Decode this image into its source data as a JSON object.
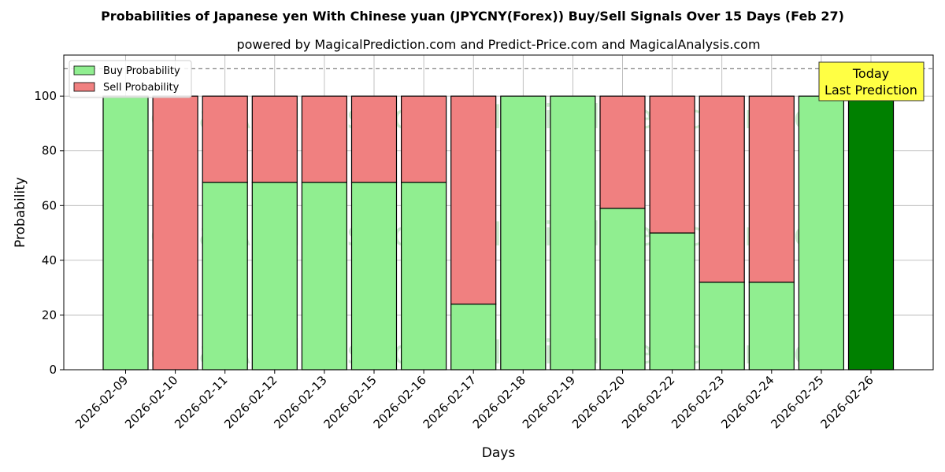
{
  "chart_data": {
    "type": "bar",
    "stacked": true,
    "title": "Probabilities of Japanese yen With Chinese yuan (JPYCNY(Forex)) Buy/Sell Signals Over 15 Days (Feb 27)",
    "subtitle": "powered by MagicalPrediction.com and Predict-Price.com and MagicalAnalysis.com",
    "xlabel": "Days",
    "ylabel": "Probability",
    "ylim": [
      0,
      115
    ],
    "yticks": [
      0,
      20,
      40,
      60,
      80,
      100
    ],
    "categories": [
      "2026-02-09",
      "2026-02-10",
      "2026-02-11",
      "2026-02-12",
      "2026-02-13",
      "2026-02-15",
      "2026-02-16",
      "2026-02-17",
      "2026-02-18",
      "2026-02-19",
      "2026-02-20",
      "2026-02-22",
      "2026-02-23",
      "2026-02-24",
      "2026-02-25",
      "2026-02-26"
    ],
    "series": [
      {
        "name": "Buy Probability",
        "color": "#90ee90",
        "values": [
          100,
          0,
          68.5,
          68.5,
          68.5,
          68.5,
          68.5,
          24,
          100,
          100,
          59,
          50,
          32,
          32,
          100,
          100
        ]
      },
      {
        "name": "Sell Probability",
        "color": "#f08080",
        "values": [
          0,
          100,
          31.5,
          31.5,
          31.5,
          31.5,
          31.5,
          76,
          0,
          0,
          41,
          50,
          68,
          68,
          0,
          0
        ]
      }
    ],
    "highlight": {
      "index": 15,
      "color": "#008000"
    },
    "reference_line": {
      "y": 110,
      "style": "dashed",
      "color": "#808080"
    },
    "annotation": {
      "line1": "Today",
      "line2": "Last Prediction",
      "background": "#ffff44"
    },
    "legend_position": "top-left",
    "grid": true,
    "watermarks": [
      "MagicalAnalysis.com",
      "MagicalPrediction.com"
    ]
  }
}
